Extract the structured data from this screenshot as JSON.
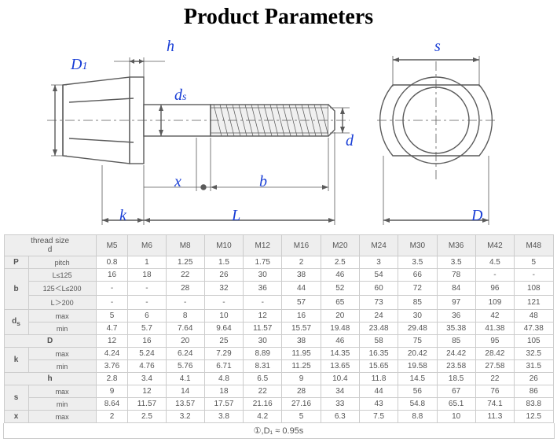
{
  "title": "Product Parameters",
  "labels": {
    "D1": "D",
    "D1sub": "1",
    "h": "h",
    "ds": "d",
    "dssub": "s",
    "d": "d",
    "s": "s",
    "x": "x",
    "b": "b",
    "k": "k",
    "L": "L",
    "D": "D"
  },
  "diagram": {
    "colors": {
      "line": "#5a5a5a",
      "fill_light": "#ffffff",
      "fill_shade": "#e8e8e8",
      "dim": "#5a5a5a",
      "label": "#1a3fd6"
    },
    "stroke_width": 1.4
  },
  "table": {
    "header_label": "thread size\nd",
    "sizes": [
      "M5",
      "M6",
      "M8",
      "M10",
      "M12",
      "M16",
      "M20",
      "M24",
      "M30",
      "M36",
      "M42",
      "M48"
    ],
    "rows": [
      {
        "g": "P",
        "s": "pitch",
        "v": [
          "0.8",
          "1",
          "1.25",
          "1.5",
          "1.75",
          "2",
          "2.5",
          "3",
          "3.5",
          "3.5",
          "4.5",
          "5"
        ]
      },
      {
        "g": "b",
        "s": "L≤125",
        "v": [
          "16",
          "18",
          "22",
          "26",
          "30",
          "38",
          "46",
          "54",
          "66",
          "78",
          "-",
          "-"
        ]
      },
      {
        "g": "",
        "s": "125＜L≤200",
        "v": [
          "-",
          "-",
          "28",
          "32",
          "36",
          "44",
          "52",
          "60",
          "72",
          "84",
          "96",
          "108"
        ]
      },
      {
        "g": "",
        "s": "L＞200",
        "v": [
          "-",
          "-",
          "-",
          "-",
          "-",
          "57",
          "65",
          "73",
          "85",
          "97",
          "109",
          "121"
        ]
      },
      {
        "g": "d_s",
        "s": "max",
        "v": [
          "5",
          "6",
          "8",
          "10",
          "12",
          "16",
          "20",
          "24",
          "30",
          "36",
          "42",
          "48"
        ]
      },
      {
        "g": "",
        "s": "min",
        "v": [
          "4.7",
          "5.7",
          "7.64",
          "9.64",
          "11.57",
          "15.57",
          "19.48",
          "23.48",
          "29.48",
          "35.38",
          "41.38",
          "47.38"
        ]
      },
      {
        "g": "D",
        "s": "",
        "v": [
          "12",
          "16",
          "20",
          "25",
          "30",
          "38",
          "46",
          "58",
          "75",
          "85",
          "95",
          "105"
        ]
      },
      {
        "g": "k",
        "s": "max",
        "v": [
          "4.24",
          "5.24",
          "6.24",
          "7.29",
          "8.89",
          "11.95",
          "14.35",
          "16.35",
          "20.42",
          "24.42",
          "28.42",
          "32.5"
        ]
      },
      {
        "g": "",
        "s": "min",
        "v": [
          "3.76",
          "4.76",
          "5.76",
          "6.71",
          "8.31",
          "11.25",
          "13.65",
          "15.65",
          "19.58",
          "23.58",
          "27.58",
          "31.5"
        ]
      },
      {
        "g": "h",
        "s": "",
        "v": [
          "2.8",
          "3.4",
          "4.1",
          "4.8",
          "6.5",
          "9",
          "10.4",
          "11.8",
          "14.5",
          "18.5",
          "22",
          "26"
        ]
      },
      {
        "g": "s",
        "s": "max",
        "v": [
          "9",
          "12",
          "14",
          "18",
          "22",
          "28",
          "34",
          "44",
          "56",
          "67",
          "76",
          "86"
        ]
      },
      {
        "g": "",
        "s": "min",
        "v": [
          "8.64",
          "11.57",
          "13.57",
          "17.57",
          "21.16",
          "27.16",
          "33",
          "43",
          "54.8",
          "65.1",
          "74.1",
          "83.8"
        ]
      },
      {
        "g": "x",
        "s": "max",
        "v": [
          "2",
          "2.5",
          "3.2",
          "3.8",
          "4.2",
          "5",
          "6.3",
          "7.5",
          "8.8",
          "10",
          "11.3",
          "12.5"
        ]
      }
    ],
    "footnote": "①,D₁ ≈ 0.95s"
  }
}
